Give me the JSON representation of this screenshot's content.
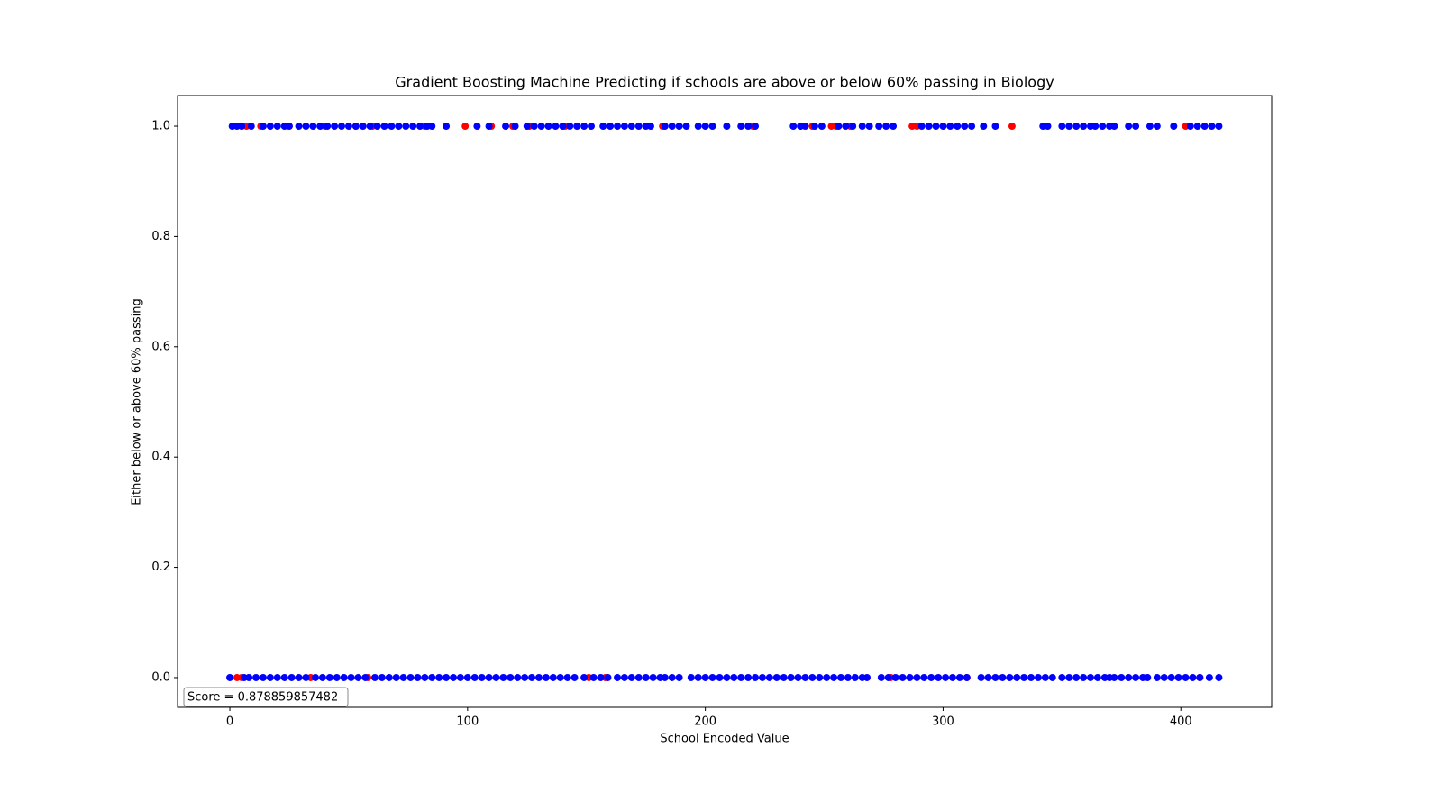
{
  "chart_data": {
    "type": "scatter",
    "title": "Gradient Boosting Machine Predicting if schools are above or below 60% passing in Biology",
    "x_label": "School Encoded Value",
    "y_label": "Either below or above 60% passing",
    "annotation": "Score = 0.878859857482",
    "xlim": [
      -22,
      438.2
    ],
    "ylim": [
      -0.054,
      1.0556
    ],
    "xticks": [
      0,
      100,
      200,
      300,
      400
    ],
    "yticks": [
      {
        "value": 0,
        "label": "0.0"
      },
      0.2,
      0.4,
      0.6,
      0.8,
      {
        "value": 1,
        "label": "1.0"
      }
    ],
    "series": [
      {
        "color": "#ff0000",
        "x": [
          7,
          13,
          40,
          53,
          60,
          82,
          99,
          110,
          119,
          126,
          141,
          182,
          220,
          245,
          253,
          255,
          261,
          287,
          289,
          329,
          402
        ],
        "y": [
          1,
          1,
          1,
          1,
          1,
          1,
          1,
          1,
          1,
          1,
          1,
          1,
          1,
          1,
          1,
          1,
          1,
          1,
          1,
          1,
          1
        ]
      },
      {
        "color": "#ff0000",
        "x": [
          3,
          5,
          34,
          58,
          151,
          158,
          278,
          310,
          408
        ],
        "y": [
          0,
          0,
          0,
          0,
          0,
          0,
          0,
          0,
          0
        ]
      },
      {
        "color": "#0000ff",
        "x": [
          1,
          3,
          5,
          9,
          14,
          17,
          20,
          23,
          25,
          29,
          32,
          35,
          38,
          41,
          44,
          47,
          50,
          53,
          56,
          59,
          62,
          65,
          68,
          71,
          74,
          77,
          80,
          83,
          85,
          91,
          104,
          109,
          116,
          120,
          125,
          128,
          131,
          134,
          137,
          140,
          143,
          146,
          149,
          152,
          157,
          160,
          163,
          166,
          169,
          172,
          175,
          177,
          183,
          186,
          189,
          192,
          197,
          200,
          203,
          209,
          215,
          218,
          221,
          237,
          240,
          242,
          246,
          249,
          256,
          259,
          262,
          266,
          269,
          273,
          276,
          279,
          291,
          294,
          297,
          300,
          303,
          306,
          309,
          312,
          317,
          322,
          342,
          344,
          350,
          353,
          356,
          359,
          362,
          364,
          367,
          370,
          372,
          378,
          381,
          387,
          390,
          397,
          404,
          407,
          410,
          413,
          416
        ],
        "y": [
          1,
          1,
          1,
          1,
          1,
          1,
          1,
          1,
          1,
          1,
          1,
          1,
          1,
          1,
          1,
          1,
          1,
          1,
          1,
          1,
          1,
          1,
          1,
          1,
          1,
          1,
          1,
          1,
          1,
          1,
          1,
          1,
          1,
          1,
          1,
          1,
          1,
          1,
          1,
          1,
          1,
          1,
          1,
          1,
          1,
          1,
          1,
          1,
          1,
          1,
          1,
          1,
          1,
          1,
          1,
          1,
          1,
          1,
          1,
          1,
          1,
          1,
          1,
          1,
          1,
          1,
          1,
          1,
          1,
          1,
          1,
          1,
          1,
          1,
          1,
          1,
          1,
          1,
          1,
          1,
          1,
          1,
          1,
          1,
          1,
          1,
          1,
          1,
          1,
          1,
          1,
          1,
          1,
          1,
          1,
          1,
          1,
          1,
          1,
          1,
          1,
          1,
          1,
          1,
          1,
          1,
          1
        ]
      },
      {
        "color": "#0000ff",
        "x": [
          0,
          6,
          8,
          11,
          14,
          17,
          20,
          23,
          26,
          29,
          32,
          36,
          39,
          42,
          45,
          48,
          51,
          54,
          57,
          61,
          64,
          67,
          70,
          73,
          76,
          79,
          82,
          85,
          88,
          91,
          94,
          97,
          100,
          103,
          106,
          109,
          112,
          115,
          118,
          121,
          124,
          127,
          130,
          133,
          136,
          139,
          142,
          145,
          149,
          153,
          156,
          159,
          163,
          166,
          169,
          172,
          175,
          178,
          181,
          183,
          186,
          189,
          194,
          197,
          200,
          203,
          206,
          209,
          212,
          215,
          218,
          221,
          224,
          227,
          230,
          233,
          236,
          239,
          242,
          245,
          248,
          251,
          254,
          257,
          260,
          263,
          266,
          268,
          274,
          277,
          280,
          283,
          286,
          289,
          292,
          295,
          298,
          301,
          304,
          307,
          310,
          316,
          319,
          322,
          325,
          328,
          331,
          334,
          337,
          340,
          343,
          346,
          350,
          353,
          356,
          359,
          362,
          365,
          368,
          370,
          372,
          375,
          378,
          381,
          384,
          386,
          390,
          393,
          396,
          399,
          402,
          405,
          408,
          412,
          416
        ],
        "y": [
          0,
          0,
          0,
          0,
          0,
          0,
          0,
          0,
          0,
          0,
          0,
          0,
          0,
          0,
          0,
          0,
          0,
          0,
          0,
          0,
          0,
          0,
          0,
          0,
          0,
          0,
          0,
          0,
          0,
          0,
          0,
          0,
          0,
          0,
          0,
          0,
          0,
          0,
          0,
          0,
          0,
          0,
          0,
          0,
          0,
          0,
          0,
          0,
          0,
          0,
          0,
          0,
          0,
          0,
          0,
          0,
          0,
          0,
          0,
          0,
          0,
          0,
          0,
          0,
          0,
          0,
          0,
          0,
          0,
          0,
          0,
          0,
          0,
          0,
          0,
          0,
          0,
          0,
          0,
          0,
          0,
          0,
          0,
          0,
          0,
          0,
          0,
          0,
          0,
          0,
          0,
          0,
          0,
          0,
          0,
          0,
          0,
          0,
          0,
          0,
          0,
          0,
          0,
          0,
          0,
          0,
          0,
          0,
          0,
          0,
          0,
          0,
          0,
          0,
          0,
          0,
          0,
          0,
          0,
          0,
          0,
          0,
          0,
          0,
          0,
          0,
          0,
          0,
          0,
          0,
          0,
          0,
          0,
          0,
          0
        ]
      }
    ]
  }
}
